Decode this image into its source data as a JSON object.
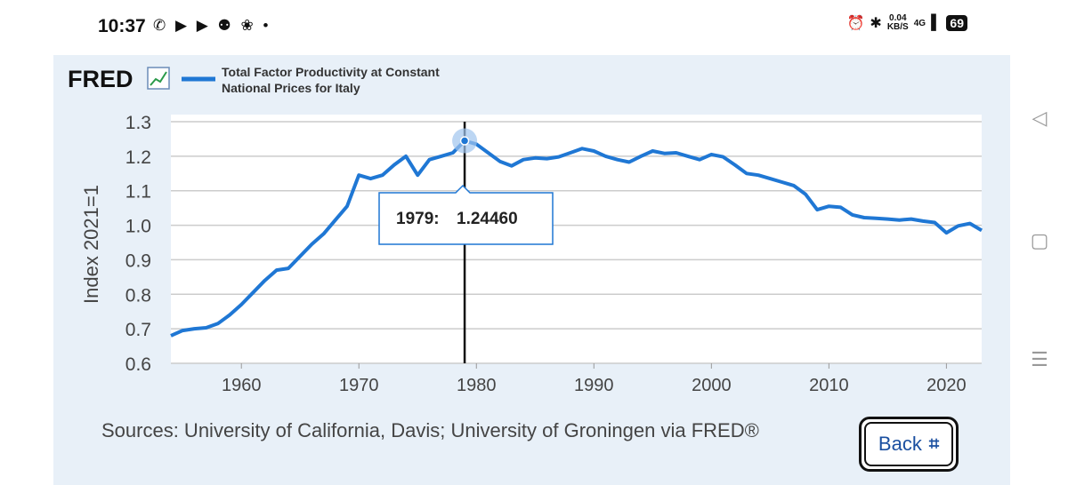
{
  "status_bar": {
    "time": "10:37",
    "notification_icons": "✆ ▶ ▶ ⚉ ❀ •",
    "speed_value": "0.04",
    "speed_unit": "KB/S",
    "network": "4G",
    "battery": "69"
  },
  "header": {
    "logo": "FRED",
    "legend_label": "Total Factor Productivity at Constant National Prices for Italy",
    "legend_label_lines": [
      "Total Factor Productivity at Constant",
      "National Prices for Italy"
    ]
  },
  "tooltip": {
    "year": "1979:",
    "value": "1.24460"
  },
  "sources": "Sources: University of California, Davis; University of Groningen via FRED®",
  "back_button": {
    "label": "Back"
  },
  "colors": {
    "series": "#1f77d4",
    "panel": "#e8f0f8",
    "grid": "#cccccc"
  },
  "chart_data": {
    "type": "line",
    "ylabel": "Index 2021=1",
    "xlabel": "",
    "xlim": [
      1954,
      2023
    ],
    "ylim": [
      0.6,
      1.3
    ],
    "x_ticks": [
      1960,
      1970,
      1980,
      1990,
      2000,
      2010,
      2020
    ],
    "y_ticks": [
      0.6,
      0.7,
      0.8,
      0.9,
      1.0,
      1.1,
      1.2,
      1.3
    ],
    "y_tick_labels": [
      "0.6",
      "0.7",
      "0.8",
      "0.9",
      "1.0",
      "1.1",
      "1.2",
      "1.3"
    ],
    "grid": true,
    "highlight": {
      "x": 1979,
      "y": 1.2446
    },
    "series": [
      {
        "name": "Total Factor Productivity at Constant National Prices for Italy",
        "x": [
          1954,
          1955,
          1956,
          1957,
          1958,
          1959,
          1960,
          1961,
          1962,
          1963,
          1964,
          1965,
          1966,
          1967,
          1968,
          1969,
          1970,
          1971,
          1972,
          1973,
          1974,
          1975,
          1976,
          1977,
          1978,
          1979,
          1980,
          1981,
          1982,
          1983,
          1984,
          1985,
          1986,
          1987,
          1988,
          1989,
          1990,
          1991,
          1992,
          1993,
          1994,
          1995,
          1996,
          1997,
          1998,
          1999,
          2000,
          2001,
          2002,
          2003,
          2004,
          2005,
          2006,
          2007,
          2008,
          2009,
          2010,
          2011,
          2012,
          2013,
          2014,
          2015,
          2016,
          2017,
          2018,
          2019,
          2020,
          2021,
          2022,
          2023
        ],
        "values": [
          0.68,
          0.695,
          0.7,
          0.703,
          0.715,
          0.74,
          0.77,
          0.805,
          0.84,
          0.87,
          0.875,
          0.91,
          0.945,
          0.975,
          1.015,
          1.055,
          1.145,
          1.135,
          1.145,
          1.175,
          1.2,
          1.145,
          1.19,
          1.2,
          1.21,
          1.2446,
          1.235,
          1.21,
          1.185,
          1.172,
          1.19,
          1.195,
          1.193,
          1.198,
          1.21,
          1.222,
          1.215,
          1.2,
          1.19,
          1.183,
          1.2,
          1.215,
          1.208,
          1.21,
          1.2,
          1.19,
          1.205,
          1.198,
          1.175,
          1.15,
          1.145,
          1.135,
          1.125,
          1.115,
          1.09,
          1.045,
          1.055,
          1.052,
          1.03,
          1.022,
          1.02,
          1.018,
          1.015,
          1.018,
          1.012,
          1.008,
          0.978,
          0.998,
          1.005,
          0.985
        ]
      }
    ]
  }
}
